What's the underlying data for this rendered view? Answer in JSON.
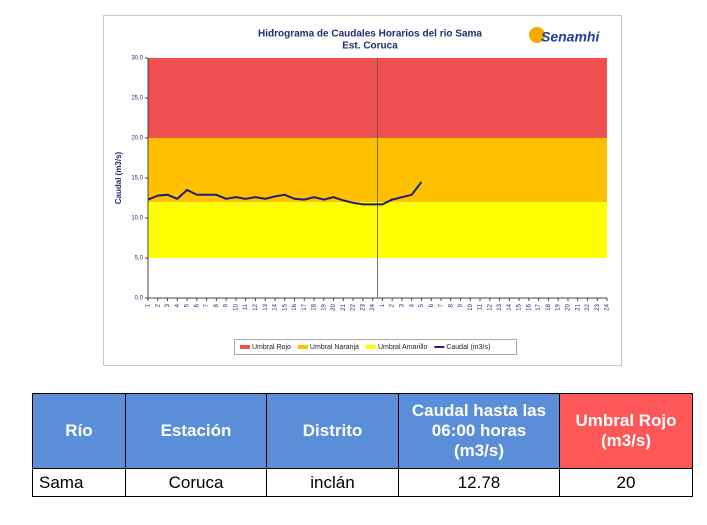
{
  "chart_data": {
    "type": "line",
    "title": "Hidrograma de Caudales Horarios del rio Sama",
    "subtitle": "Est. Coruca",
    "logo": "Senamhi",
    "y_label": "Caudal (m3/s)",
    "categories": [
      "1",
      "2",
      "3",
      "4",
      "5",
      "6",
      "7",
      "8",
      "9",
      "10",
      "11",
      "12",
      "13",
      "14",
      "15",
      "16",
      "17",
      "18",
      "19",
      "20",
      "21",
      "22",
      "23",
      "24",
      "1",
      "2",
      "3",
      "4",
      "5",
      "6",
      "7",
      "8",
      "9",
      "10",
      "11",
      "12",
      "13",
      "14",
      "15",
      "16",
      "17",
      "18",
      "19",
      "20",
      "21",
      "22",
      "23",
      "24"
    ],
    "bands": [
      {
        "name": "Umbral Rojo",
        "color": "#f05050",
        "lower": 20,
        "upper": 30
      },
      {
        "name": "Umbral Naranja",
        "color": "#ffc000",
        "lower": 12,
        "upper": 20
      },
      {
        "name": "Umbral Amarillo",
        "color": "#ffff00",
        "lower": 5,
        "upper": 12
      }
    ],
    "series": [
      {
        "name": "Caudal (m3/s)",
        "color": "#1f1f7a",
        "values": [
          12.3,
          12.8,
          12.9,
          12.4,
          13.5,
          12.9,
          12.9,
          12.9,
          12.4,
          12.6,
          12.4,
          12.6,
          12.4,
          12.7,
          12.9,
          12.4,
          12.3,
          12.6,
          12.3,
          12.6,
          12.2,
          11.9,
          11.7,
          11.7,
          11.7,
          12.3,
          12.6,
          12.9,
          14.5,
          null,
          null,
          null,
          null,
          null,
          null,
          null,
          null,
          null,
          null,
          null,
          null,
          null,
          null,
          null,
          null,
          null,
          null,
          null
        ]
      }
    ],
    "ylim": [
      0,
      30
    ],
    "yticks": [
      {
        "value": 0,
        "label": "0.0"
      },
      {
        "value": 5,
        "label": "5.0"
      },
      {
        "value": 10,
        "label": "10.0"
      },
      {
        "value": 15,
        "label": "15.0"
      },
      {
        "value": 20,
        "label": "20.0"
      },
      {
        "value": 25,
        "label": "25.0"
      },
      {
        "value": 30,
        "label": "30.0"
      }
    ],
    "legend": "bottom"
  },
  "table": {
    "header": [
      "Río",
      "Estación",
      "Distrito",
      "Caudal hasta las 06:00 horas (m3/s)",
      "Umbral  Rojo (m3/s)"
    ],
    "rows": [
      [
        "Sama",
        "Coruca",
        "inclán",
        "12.78",
        "20"
      ]
    ]
  }
}
